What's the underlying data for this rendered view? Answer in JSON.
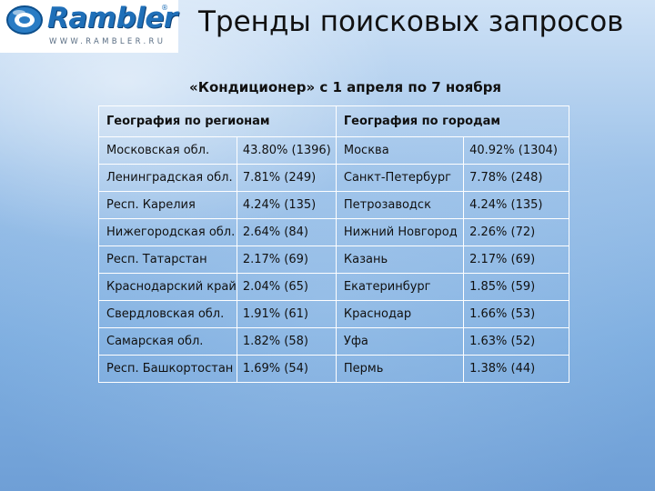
{
  "logo": {
    "word": "Rambler",
    "reg_mark": "®",
    "url": "WWW.RAMBLER.RU"
  },
  "title": "Тренды поисковых запросов",
  "subtitle": "«Кондиционер» с 1 апреля по 7 ноября",
  "table": {
    "headers": [
      "География по регионам",
      "География по городам"
    ],
    "rows": [
      [
        "Московская обл.",
        "43.80% (1396)",
        "Москва",
        "40.92% (1304)"
      ],
      [
        "Ленинградская обл.",
        "7.81% (249)",
        "Санкт-Петербург",
        "7.78% (248)"
      ],
      [
        "Респ. Карелия",
        "4.24% (135)",
        "Петрозаводск",
        "4.24% (135)"
      ],
      [
        "Нижегородская обл.",
        "2.64% (84)",
        "Нижний Новгород",
        "2.26% (72)"
      ],
      [
        "Респ. Татарстан",
        "2.17% (69)",
        "Казань",
        "2.17% (69)"
      ],
      [
        "Краснодарский край",
        "2.04% (65)",
        "Екатеринбург",
        "1.85% (59)"
      ],
      [
        "Свердловская обл.",
        "1.91% (61)",
        "Краснодар",
        "1.66% (53)"
      ],
      [
        "Самарская обл.",
        "1.82% (58)",
        "Уфа",
        "1.63% (52)"
      ],
      [
        "Респ. Башкортостан",
        "1.69% (54)",
        "Пермь",
        "1.38% (44)"
      ]
    ]
  }
}
